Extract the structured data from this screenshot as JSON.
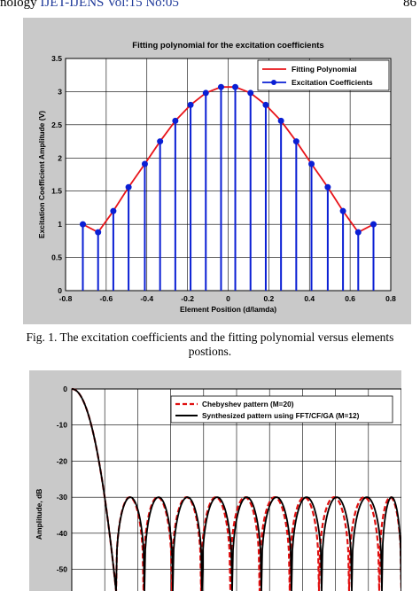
{
  "header": {
    "left_prefix": "nology ",
    "left_journal": "IJET-IJENS Vol:15 No:05",
    "right": "86"
  },
  "caption": {
    "line1": "Fig. 1. The excitation coefficients and the fitting polynomial versus elements",
    "line2": "postions."
  },
  "colors": {
    "fit_line": "#e8141a",
    "stem": "#0a1fd4",
    "cheby": "#e01010",
    "synth": "#000000",
    "panel_bg": "#c9c9c9"
  },
  "chart_data": [
    {
      "type": "line",
      "title": "Fitting polynomial for the excitation coefficients",
      "xlabel": "Element Position (d/lamda)",
      "ylabel": "Excitation Coefficient Amplitude (V)",
      "xlim": [
        -0.8,
        0.8
      ],
      "ylim": [
        0,
        3.5
      ],
      "xticks": [
        "-0.8",
        "-0.6",
        "-0.4",
        "-0.2",
        "0",
        "0.2",
        "0.4",
        "0.6",
        "0.8"
      ],
      "yticks": [
        "0",
        "0.5",
        "1",
        "1.5",
        "2",
        "2.5",
        "3",
        "3.5"
      ],
      "grid": true,
      "legend_position": "top-right",
      "series": [
        {
          "name": "Fitting Polynomial",
          "style": "line"
        },
        {
          "name": "Excitation Coefficients",
          "style": "stem"
        }
      ],
      "x": [
        -0.715,
        -0.64,
        -0.565,
        -0.49,
        -0.41,
        -0.335,
        -0.26,
        -0.185,
        -0.11,
        -0.035,
        0.035,
        0.11,
        0.185,
        0.26,
        0.335,
        0.41,
        0.49,
        0.565,
        0.64,
        0.715
      ],
      "values": [
        1.0,
        0.88,
        1.2,
        1.56,
        1.91,
        2.25,
        2.56,
        2.8,
        2.98,
        3.07,
        3.07,
        2.98,
        2.8,
        2.56,
        2.25,
        1.91,
        1.56,
        1.2,
        0.88,
        1.0
      ]
    },
    {
      "type": "line",
      "ylabel": "Amplitude, dB",
      "ylim": [
        -56,
        0
      ],
      "yticks": [
        "0",
        "-10",
        "-20",
        "-30",
        "-40",
        "-50"
      ],
      "grid": true,
      "legend_position": "top-right",
      "series": [
        {
          "name": "Chebyshev pattern (M=20)",
          "style": "dashed"
        },
        {
          "name": "Synthesized pattern using FFT/CF/GA (M=12)",
          "style": "solid"
        }
      ],
      "sidelobe_level": -30
    }
  ]
}
